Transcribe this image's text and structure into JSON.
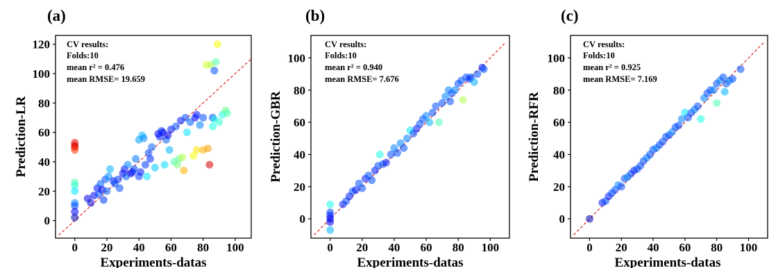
{
  "chart_data": [
    {
      "type": "scatter",
      "panel_label": "(a)",
      "xlabel": "Experiments-datas",
      "ylabel": "Prediction-LR",
      "xlim": [
        -12,
        110
      ],
      "ylim": [
        -12,
        126
      ],
      "xticks": [
        0,
        20,
        40,
        60,
        80,
        100
      ],
      "yticks": [
        0,
        20,
        40,
        60,
        80,
        100,
        120
      ],
      "diagonal": [
        -10,
        110
      ],
      "stats": [
        "CV results:",
        "Folds:10",
        "mean r² = 0.476",
        "mean RMSE= 19.659"
      ],
      "points": [
        [
          0,
          53,
          0.88
        ],
        [
          0,
          51,
          0.93
        ],
        [
          0,
          50,
          0.9
        ],
        [
          0,
          48,
          0.82
        ],
        [
          0,
          26,
          0.45
        ],
        [
          0,
          24,
          0.42
        ],
        [
          0,
          20,
          0.35
        ],
        [
          0,
          12,
          0.25
        ],
        [
          0,
          10,
          0.2
        ],
        [
          0,
          6,
          0.12
        ],
        [
          0,
          2,
          0.05
        ],
        [
          8,
          15,
          0.1
        ],
        [
          10,
          12,
          0.08
        ],
        [
          12,
          17,
          0.12
        ],
        [
          14,
          22,
          0.15
        ],
        [
          15,
          18,
          0.2
        ],
        [
          16,
          25,
          0.22
        ],
        [
          17,
          21,
          0.1
        ],
        [
          18,
          14,
          0.18
        ],
        [
          19,
          28,
          0.2
        ],
        [
          20,
          20,
          0.22
        ],
        [
          21,
          30,
          0.26
        ],
        [
          22,
          35,
          0.3
        ],
        [
          24,
          27,
          0.15
        ],
        [
          25,
          25,
          0.2
        ],
        [
          27,
          28,
          0.18
        ],
        [
          28,
          22,
          0.2
        ],
        [
          30,
          32,
          0.12
        ],
        [
          31,
          35,
          0.14
        ],
        [
          32,
          30,
          0.22
        ],
        [
          33,
          38,
          0.25
        ],
        [
          35,
          32,
          0.1
        ],
        [
          37,
          35,
          0.2
        ],
        [
          38,
          42,
          0.24
        ],
        [
          40,
          30,
          0.18
        ],
        [
          40,
          55,
          0.28
        ],
        [
          41,
          33,
          0.15
        ],
        [
          42,
          58,
          0.3
        ],
        [
          43,
          56,
          0.26
        ],
        [
          44,
          38,
          0.18
        ],
        [
          45,
          30,
          0.35
        ],
        [
          46,
          46,
          0.2
        ],
        [
          47,
          42,
          0.16
        ],
        [
          48,
          50,
          0.22
        ],
        [
          50,
          36,
          0.32
        ],
        [
          52,
          59,
          0.12
        ],
        [
          53,
          57,
          0.15
        ],
        [
          54,
          61,
          0.18
        ],
        [
          55,
          60,
          0.1
        ],
        [
          56,
          38,
          0.34
        ],
        [
          57,
          55,
          0.22
        ],
        [
          58,
          58,
          0.12
        ],
        [
          59,
          48,
          0.3
        ],
        [
          60,
          62,
          0.15
        ],
        [
          62,
          40,
          0.45
        ],
        [
          63,
          64,
          0.2
        ],
        [
          64,
          38,
          0.5
        ],
        [
          65,
          42,
          0.48
        ],
        [
          67,
          43,
          0.55
        ],
        [
          68,
          34,
          0.7
        ],
        [
          70,
          60,
          0.35
        ],
        [
          72,
          67,
          0.22
        ],
        [
          74,
          44,
          0.62
        ],
        [
          75,
          70,
          0.12
        ],
        [
          76,
          72,
          0.15
        ],
        [
          76,
          48,
          0.65
        ],
        [
          78,
          65,
          0.25
        ],
        [
          80,
          70,
          0.2
        ],
        [
          80,
          48,
          0.7
        ],
        [
          82,
          106,
          0.58
        ],
        [
          83,
          49,
          0.72
        ],
        [
          84,
          38,
          0.92
        ],
        [
          85,
          106,
          0.55
        ],
        [
          86,
          70,
          0.18
        ],
        [
          86,
          64,
          0.4
        ],
        [
          87,
          102,
          0.2
        ],
        [
          87,
          69,
          0.4
        ],
        [
          88,
          108,
          0.45
        ],
        [
          89,
          120,
          0.62
        ],
        [
          90,
          67,
          0.42
        ],
        [
          92,
          72,
          0.4
        ],
        [
          94,
          75,
          0.48
        ],
        [
          95,
          73,
          0.45
        ],
        [
          66,
          68,
          0.15
        ],
        [
          69,
          70,
          0.2
        ],
        [
          36,
          33,
          0.15
        ]
      ]
    },
    {
      "type": "scatter",
      "panel_label": "(b)",
      "xlabel": "Experiments-datas",
      "ylabel": "Prediction-GBR",
      "xlim": [
        -12,
        112
      ],
      "ylim": [
        -12,
        114
      ],
      "xticks": [
        0,
        20,
        40,
        60,
        80,
        100
      ],
      "yticks": [
        0,
        20,
        40,
        60,
        80,
        100
      ],
      "diagonal": [
        -10,
        110
      ],
      "stats": [
        "CV results:",
        "Folds:10",
        "mean r² = 0.940",
        "mean RMSE= 7.676"
      ],
      "points": [
        [
          0,
          9,
          0.4
        ],
        [
          0,
          4,
          0.2
        ],
        [
          0,
          2,
          0.15
        ],
        [
          0,
          0,
          0.12
        ],
        [
          0,
          -2,
          0.1
        ],
        [
          0,
          -7,
          0.3
        ],
        [
          8,
          9,
          0.15
        ],
        [
          10,
          11,
          0.2
        ],
        [
          12,
          14,
          0.15
        ],
        [
          14,
          17,
          0.2
        ],
        [
          16,
          18,
          0.15
        ],
        [
          18,
          22,
          0.2
        ],
        [
          20,
          19,
          0.2
        ],
        [
          22,
          25,
          0.15
        ],
        [
          24,
          27,
          0.2
        ],
        [
          26,
          24,
          0.2
        ],
        [
          28,
          30,
          0.15
        ],
        [
          30,
          33,
          0.2
        ],
        [
          31,
          40,
          0.4
        ],
        [
          33,
          34,
          0.2
        ],
        [
          35,
          35,
          0.15
        ],
        [
          38,
          40,
          0.2
        ],
        [
          40,
          44,
          0.25
        ],
        [
          42,
          41,
          0.2
        ],
        [
          44,
          47,
          0.25
        ],
        [
          46,
          44,
          0.2
        ],
        [
          48,
          50,
          0.25
        ],
        [
          50,
          55,
          0.35
        ],
        [
          52,
          53,
          0.2
        ],
        [
          54,
          56,
          0.15
        ],
        [
          56,
          59,
          0.2
        ],
        [
          58,
          62,
          0.2
        ],
        [
          60,
          64,
          0.25
        ],
        [
          62,
          60,
          0.3
        ],
        [
          64,
          66,
          0.2
        ],
        [
          66,
          70,
          0.2
        ],
        [
          68,
          60,
          0.45
        ],
        [
          70,
          72,
          0.2
        ],
        [
          72,
          76,
          0.25
        ],
        [
          74,
          80,
          0.25
        ],
        [
          75,
          73,
          0.2
        ],
        [
          76,
          78,
          0.2
        ],
        [
          78,
          80,
          0.25
        ],
        [
          80,
          84,
          0.2
        ],
        [
          82,
          86,
          0.2
        ],
        [
          83,
          74,
          0.55
        ],
        [
          85,
          88,
          0.2
        ],
        [
          87,
          87,
          0.15
        ],
        [
          88,
          88,
          0.2
        ],
        [
          90,
          85,
          0.3
        ],
        [
          92,
          90,
          0.2
        ],
        [
          95,
          94,
          0.15
        ],
        [
          96,
          93,
          0.2
        ]
      ]
    },
    {
      "type": "scatter",
      "panel_label": "(c)",
      "xlabel": "Experiments-datas",
      "ylabel": "Prediction-RFR",
      "xlim": [
        -12,
        112
      ],
      "ylim": [
        -12,
        114
      ],
      "xticks": [
        0,
        20,
        40,
        60,
        80,
        100
      ],
      "yticks": [
        0,
        20,
        40,
        60,
        80,
        100
      ],
      "diagonal": [
        -10,
        110
      ],
      "stats": [
        "CV results:",
        "Folds:10",
        "mean r² = 0.925",
        "mean RMSE= 7.169"
      ],
      "points": [
        [
          0,
          0,
          0.05
        ],
        [
          8,
          10,
          0.15
        ],
        [
          10,
          11,
          0.2
        ],
        [
          12,
          14,
          0.15
        ],
        [
          14,
          16,
          0.2
        ],
        [
          16,
          18,
          0.2
        ],
        [
          18,
          21,
          0.25
        ],
        [
          20,
          20,
          0.2
        ],
        [
          22,
          25,
          0.2
        ],
        [
          24,
          26,
          0.25
        ],
        [
          26,
          28,
          0.2
        ],
        [
          28,
          30,
          0.15
        ],
        [
          30,
          31,
          0.2
        ],
        [
          32,
          33,
          0.2
        ],
        [
          34,
          36,
          0.2
        ],
        [
          36,
          38,
          0.25
        ],
        [
          38,
          40,
          0.2
        ],
        [
          40,
          43,
          0.2
        ],
        [
          42,
          44,
          0.25
        ],
        [
          44,
          46,
          0.2
        ],
        [
          46,
          48,
          0.2
        ],
        [
          48,
          51,
          0.2
        ],
        [
          50,
          52,
          0.2
        ],
        [
          52,
          54,
          0.25
        ],
        [
          54,
          57,
          0.2
        ],
        [
          56,
          58,
          0.2
        ],
        [
          58,
          62,
          0.25
        ],
        [
          60,
          66,
          0.35
        ],
        [
          62,
          63,
          0.2
        ],
        [
          64,
          66,
          0.2
        ],
        [
          66,
          68,
          0.25
        ],
        [
          68,
          70,
          0.2
        ],
        [
          70,
          62,
          0.4
        ],
        [
          72,
          75,
          0.25
        ],
        [
          74,
          78,
          0.2
        ],
        [
          76,
          80,
          0.2
        ],
        [
          78,
          80,
          0.25
        ],
        [
          80,
          72,
          0.45
        ],
        [
          80,
          84,
          0.2
        ],
        [
          82,
          86,
          0.25
        ],
        [
          84,
          88,
          0.2
        ],
        [
          85,
          79,
          0.3
        ],
        [
          86,
          84,
          0.2
        ],
        [
          88,
          86,
          0.25
        ],
        [
          90,
          87,
          0.2
        ],
        [
          95,
          93,
          0.2
        ]
      ]
    }
  ]
}
